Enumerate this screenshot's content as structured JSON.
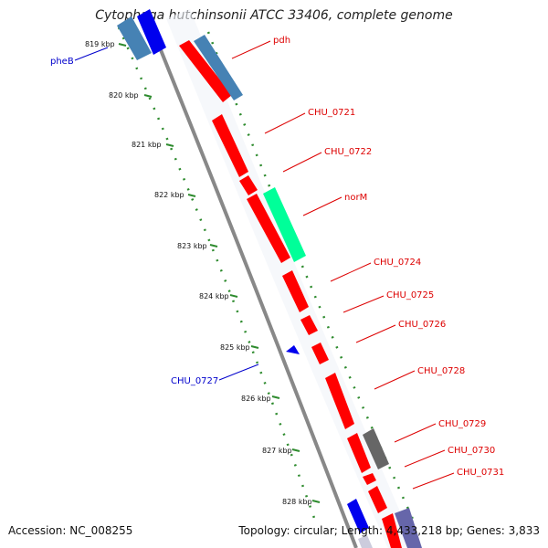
{
  "title": "Cytophaga hutchinsonii ATCC 33406, complete genome",
  "footer": {
    "accession": "Accession: NC_008255",
    "summary": "Topology: circular; Length: 4,433,218 bp; Genes: 3,833"
  },
  "kbp_ticks": [
    "819 kbp",
    "820 kbp",
    "821 kbp",
    "822 kbp",
    "823 kbp",
    "824 kbp",
    "825 kbp",
    "826 kbp",
    "827 kbp",
    "828 kbp"
  ],
  "gene_labels": [
    {
      "text": "pheB",
      "color": "#0000cc"
    },
    {
      "text": "pdh",
      "color": "#dd0000"
    },
    {
      "text": "CHU_0721",
      "color": "#dd0000"
    },
    {
      "text": "CHU_0722",
      "color": "#dd0000"
    },
    {
      "text": "norM",
      "color": "#dd0000"
    },
    {
      "text": "CHU_0724",
      "color": "#dd0000"
    },
    {
      "text": "CHU_0725",
      "color": "#dd0000"
    },
    {
      "text": "CHU_0726",
      "color": "#dd0000"
    },
    {
      "text": "CHU_0727",
      "color": "#0000cc"
    },
    {
      "text": "CHU_0728",
      "color": "#dd0000"
    },
    {
      "text": "CHU_0729",
      "color": "#dd0000"
    },
    {
      "text": "CHU_0730",
      "color": "#dd0000"
    },
    {
      "text": "CHU_0731",
      "color": "#dd0000"
    }
  ],
  "colors": {
    "forward_cds": "#ff0000",
    "reverse_cds": "#0000ee",
    "rna": "#4682b4",
    "mobile": "#00ff99",
    "other": "#666666",
    "backbone": "#888888",
    "dots": "#2e8b2e"
  }
}
